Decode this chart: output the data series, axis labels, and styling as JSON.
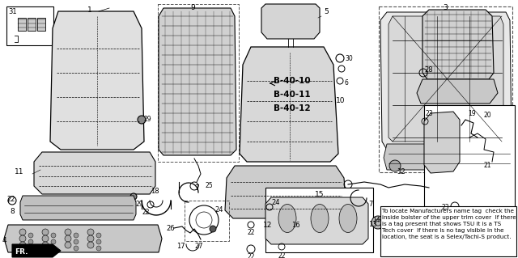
{
  "bg_color": "#f5f5f5",
  "line_color": "#1a1a1a",
  "text_color": "#000000",
  "note_text": "To locate Manufacturers name tag  check the\ninside bolster of the upper trim cover  If there\nis a tag present that shows TSU it is a TS\nTech cover  If there is no tag visible in the\nlocation, the seat is a Selex/Tachi-S product.",
  "b_labels": [
    "B-40-10",
    "B-40-11",
    "B-40-12"
  ],
  "arrow_label": "FR.",
  "figsize": [
    6.4,
    3.19
  ],
  "dpi": 100
}
